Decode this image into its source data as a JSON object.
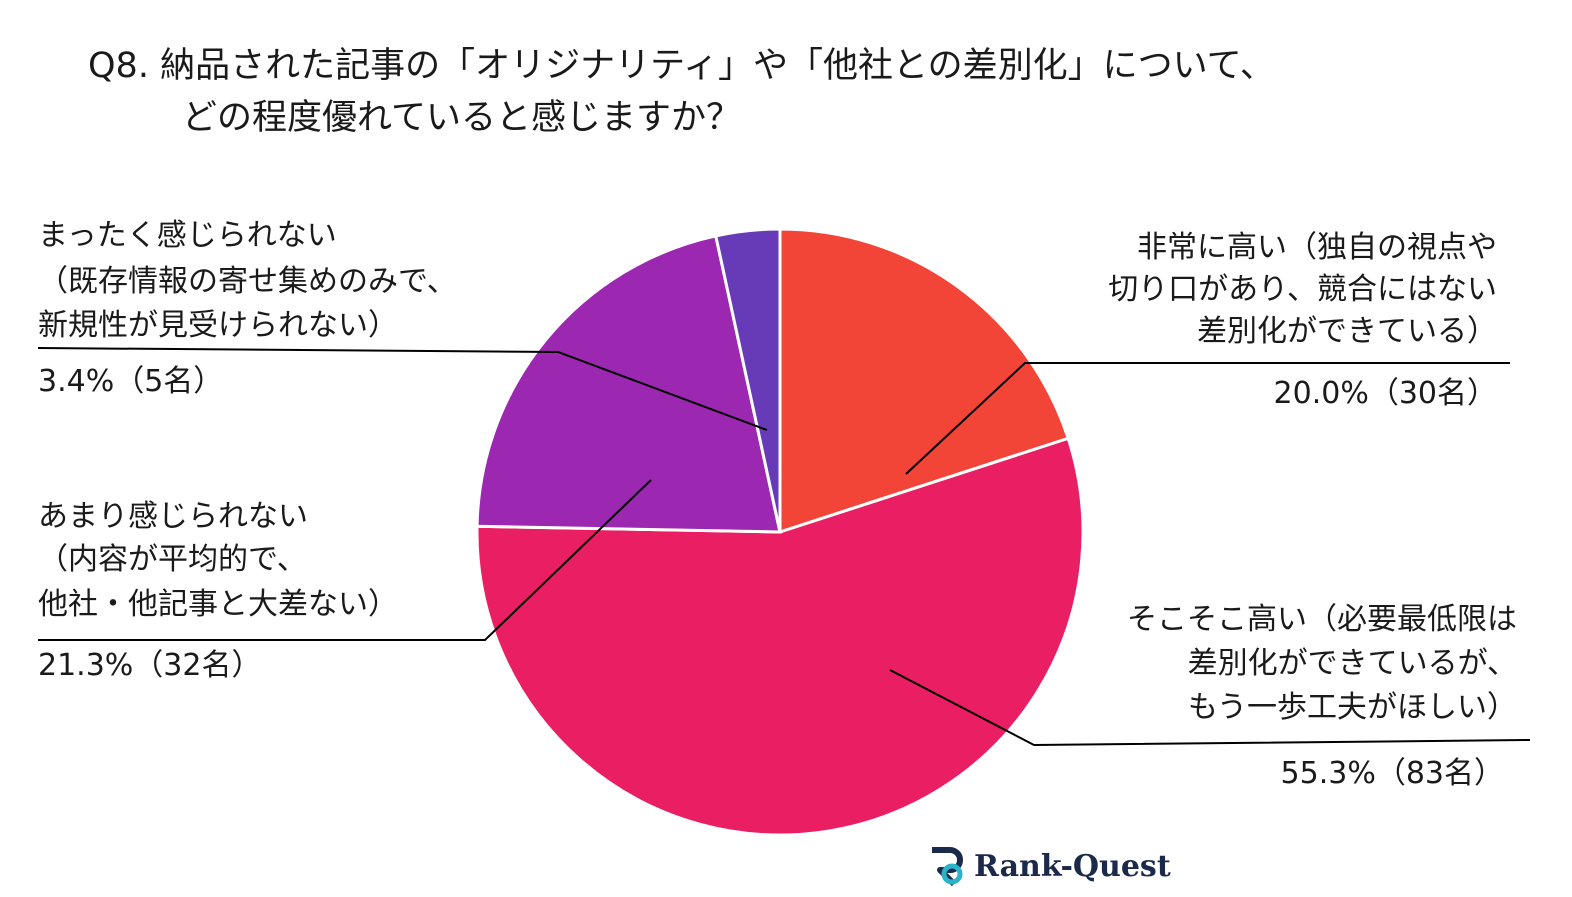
{
  "title_line1": "Q8. 納品された記事の「オリジナリティ」や「他社との差別化」について、",
  "title_line2": "どの程度優れていると感じますか？",
  "logo_text": "Rank-Quest",
  "colors": {
    "very_high": "#f24437",
    "somewhat_high": "#e91e63",
    "not_much": "#9c27b0",
    "not_at_all": "#673ab7"
  },
  "chart_data": {
    "type": "pie",
    "title": "Q8. 納品された記事の「オリジナリティ」や「他社との差別化」について、どの程度優れていると感じますか？",
    "start": "12 o'clock, clockwise",
    "slices": [
      {
        "key": "very_high",
        "label_lines": [
          "非常に高い（独自の視点や",
          "切り口があり、競合にはない",
          "差別化ができている）"
        ],
        "value_text": "20.0%（30名）",
        "percent": 20.0,
        "count": 30,
        "color": "#f24437"
      },
      {
        "key": "somewhat_high",
        "label_lines": [
          "そこそこ高い（必要最低限は",
          "差別化ができているが、",
          "もう一歩工夫がほしい）"
        ],
        "value_text": "55.3%（83名）",
        "percent": 55.3,
        "count": 83,
        "color": "#e91e63"
      },
      {
        "key": "not_much",
        "label_lines": [
          "あまり感じられない",
          "（内容が平均的で、",
          "他社・他記事と大差ない）"
        ],
        "value_text": "21.3%（32名）",
        "percent": 21.3,
        "count": 32,
        "color": "#9c27b0"
      },
      {
        "key": "not_at_all",
        "label_lines": [
          "まったく感じられない",
          "（既存情報の寄せ集めのみで、",
          "新規性が見受けられない）"
        ],
        "value_text": "3.4%（5名）",
        "percent": 3.4,
        "count": 5,
        "color": "#673ab7"
      }
    ]
  }
}
